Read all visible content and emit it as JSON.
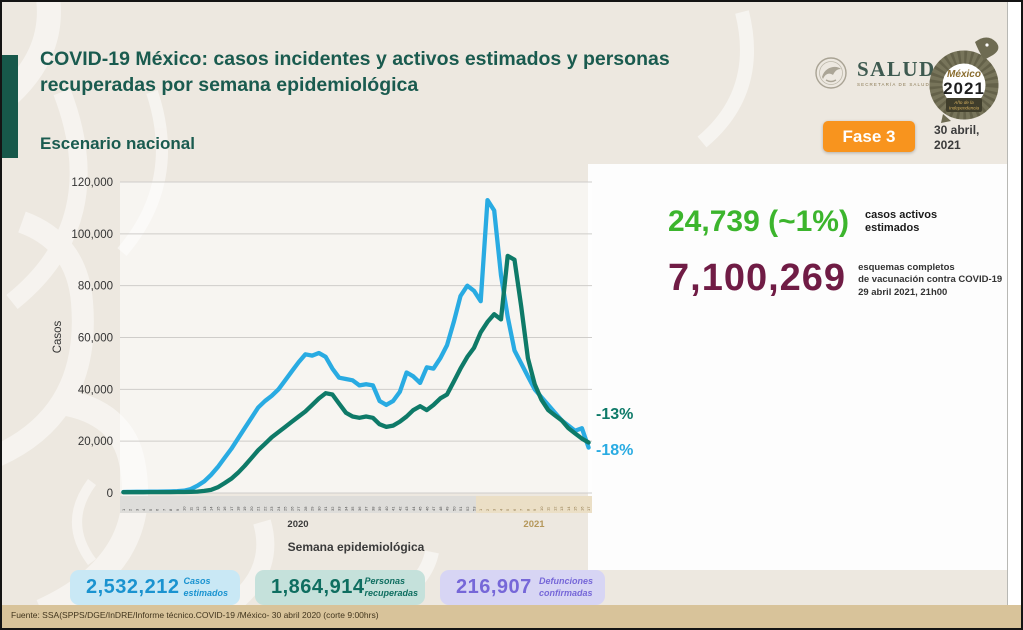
{
  "header": {
    "title": "COVID-19 México: casos incidentes y activos estimados y personas recuperadas por semana epidemiológica",
    "subtitle": "Escenario nacional",
    "fase_badge": "Fase 3",
    "date_line1": "30 abril,",
    "date_line2": "2021",
    "salud_logo": {
      "name": "SALUD",
      "sub": "SECRETARÍA DE SALUD"
    },
    "mexico_logo": {
      "script": "México",
      "year": "2021",
      "sub1": "Año de la",
      "sub2": "Independencia"
    }
  },
  "stats_right": {
    "active_value": "24,739 (~1%)",
    "active_color": "#3CB52D",
    "active_label_line1": "casos activos",
    "active_label_line2": "estimados",
    "vaccine_value": "7,100,269",
    "vaccine_color": "#701C45",
    "vaccine_label_line1": "esquemas completos",
    "vaccine_label_line2": "de vacunación contra COVID-19",
    "vaccine_label_line3": "29 abril 2021, 21h00"
  },
  "summary_cards": [
    {
      "value": "2,532,212",
      "label_line1": "Casos",
      "label_line2": "estimados",
      "bg": "#C9E8F5",
      "fg": "#1A93D0"
    },
    {
      "value": "1,864,914",
      "label_line1": "Personas",
      "label_line2": "recuperadas",
      "bg": "#C5E1DB",
      "fg": "#0E6E60"
    },
    {
      "value": "216,907",
      "label_line1": "Defunciones",
      "label_line2": "confirmadas",
      "bg": "#D7D5F4",
      "fg": "#7667D8"
    }
  ],
  "footer": {
    "source": "Fuente: SSA(SPPS/DGE/InDRE/Informe técnico.COVID-19 /México- 30 abril 2020 (corte 9:00hrs)"
  },
  "chart_data": {
    "type": "line",
    "title": "",
    "ylabel": "Casos",
    "xlabel": "Semana epidemiológica",
    "ylim": [
      0,
      120000
    ],
    "yticks": [
      0,
      20000,
      40000,
      60000,
      80000,
      100000,
      120000
    ],
    "grid": true,
    "legend_position": "none",
    "x_groups": [
      {
        "year": "2020",
        "weeks": 53
      },
      {
        "year": "2021",
        "weeks": 17
      }
    ],
    "series": [
      {
        "name": "Casos estimados",
        "color": "#29ABE2",
        "values": [
          400,
          420,
          450,
          480,
          500,
          520,
          560,
          620,
          700,
          900,
          1500,
          2800,
          4500,
          7000,
          10000,
          13500,
          17000,
          21000,
          25000,
          29000,
          33000,
          35500,
          37500,
          40000,
          43500,
          47000,
          50500,
          53500,
          53000,
          54000,
          52500,
          48000,
          44500,
          44000,
          43500,
          41500,
          42000,
          41500,
          35500,
          34000,
          35500,
          39000,
          46500,
          45000,
          42500,
          48500,
          48000,
          52000,
          57000,
          66000,
          76000,
          80000,
          78000,
          74000,
          113000,
          109000,
          84000,
          68000,
          55000,
          50000,
          45000,
          40000,
          37000,
          34000,
          31000,
          28000,
          26000,
          24000,
          25000,
          17500
        ]
      },
      {
        "name": "Personas recuperadas",
        "color": "#0E7A68",
        "values": [
          300,
          300,
          310,
          320,
          330,
          340,
          350,
          360,
          380,
          400,
          450,
          550,
          800,
          1200,
          2200,
          3800,
          5500,
          7800,
          10500,
          13500,
          16500,
          19000,
          21500,
          23500,
          25500,
          27500,
          29500,
          31500,
          34000,
          36500,
          38500,
          38000,
          34500,
          31000,
          29500,
          29000,
          29500,
          29000,
          26500,
          25500,
          26000,
          27500,
          29500,
          32000,
          33500,
          32000,
          34000,
          36500,
          38000,
          43000,
          48000,
          52500,
          56000,
          62000,
          66000,
          69000,
          67000,
          91500,
          90000,
          72000,
          52000,
          42000,
          36000,
          32000,
          30000,
          28000,
          25000,
          23000,
          21000,
          19500
        ]
      }
    ],
    "annotations": [
      {
        "text": "-13%",
        "series": "Personas recuperadas",
        "color": "#0E7A68"
      },
      {
        "text": "-18%",
        "series": "Casos estimados",
        "color": "#29ABE2"
      }
    ]
  }
}
